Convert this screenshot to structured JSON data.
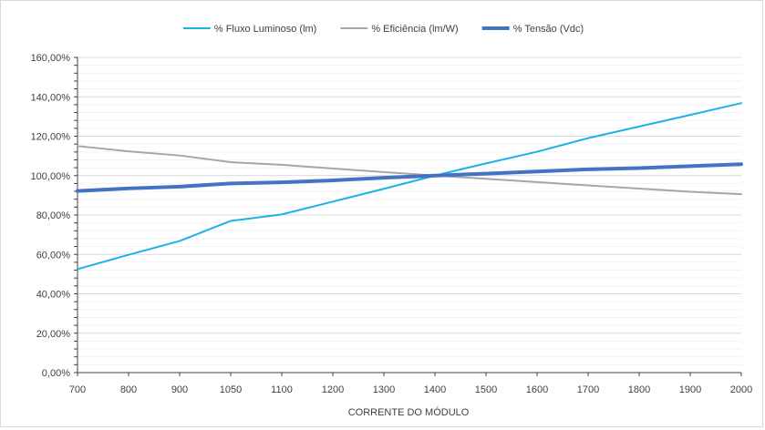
{
  "chart_data": {
    "type": "line",
    "title": "",
    "xlabel": "CORRENTE DO MÓDULO",
    "ylabel": "",
    "categories": [
      "700",
      "800",
      "900",
      "1050",
      "1100",
      "1200",
      "1300",
      "1400",
      "1500",
      "1600",
      "1700",
      "1800",
      "1900",
      "2000"
    ],
    "y_ticks": [
      "0,00%",
      "20,00%",
      "40,00%",
      "60,00%",
      "80,00%",
      "100,00%",
      "120,00%",
      "140,00%",
      "160,00%"
    ],
    "ylim": [
      0,
      160
    ],
    "y_minor_step": 4,
    "grid": true,
    "legend_position": "top",
    "series": [
      {
        "name": "% Fluxo Luminoso (lm)",
        "color": "#1eb1e6",
        "width": 2,
        "values": [
          52.5,
          59.8,
          66.8,
          77.0,
          80.3,
          86.8,
          93.3,
          100.0,
          106.2,
          112.1,
          119.0,
          124.9,
          130.8,
          136.8
        ]
      },
      {
        "name": "% Eficiência (lm/W)",
        "color": "#a6a6a6",
        "width": 2,
        "values": [
          115.0,
          112.3,
          110.2,
          106.8,
          105.5,
          103.6,
          101.8,
          100.0,
          98.4,
          96.7,
          95.0,
          93.4,
          91.8,
          90.6
        ]
      },
      {
        "name": "% Tensão (Vdc)",
        "color": "#4472c4",
        "width": 4,
        "values": [
          92.2,
          93.5,
          94.4,
          96.0,
          96.6,
          97.6,
          98.9,
          100.0,
          101.0,
          102.1,
          103.2,
          103.8,
          104.8,
          105.8
        ]
      }
    ]
  }
}
